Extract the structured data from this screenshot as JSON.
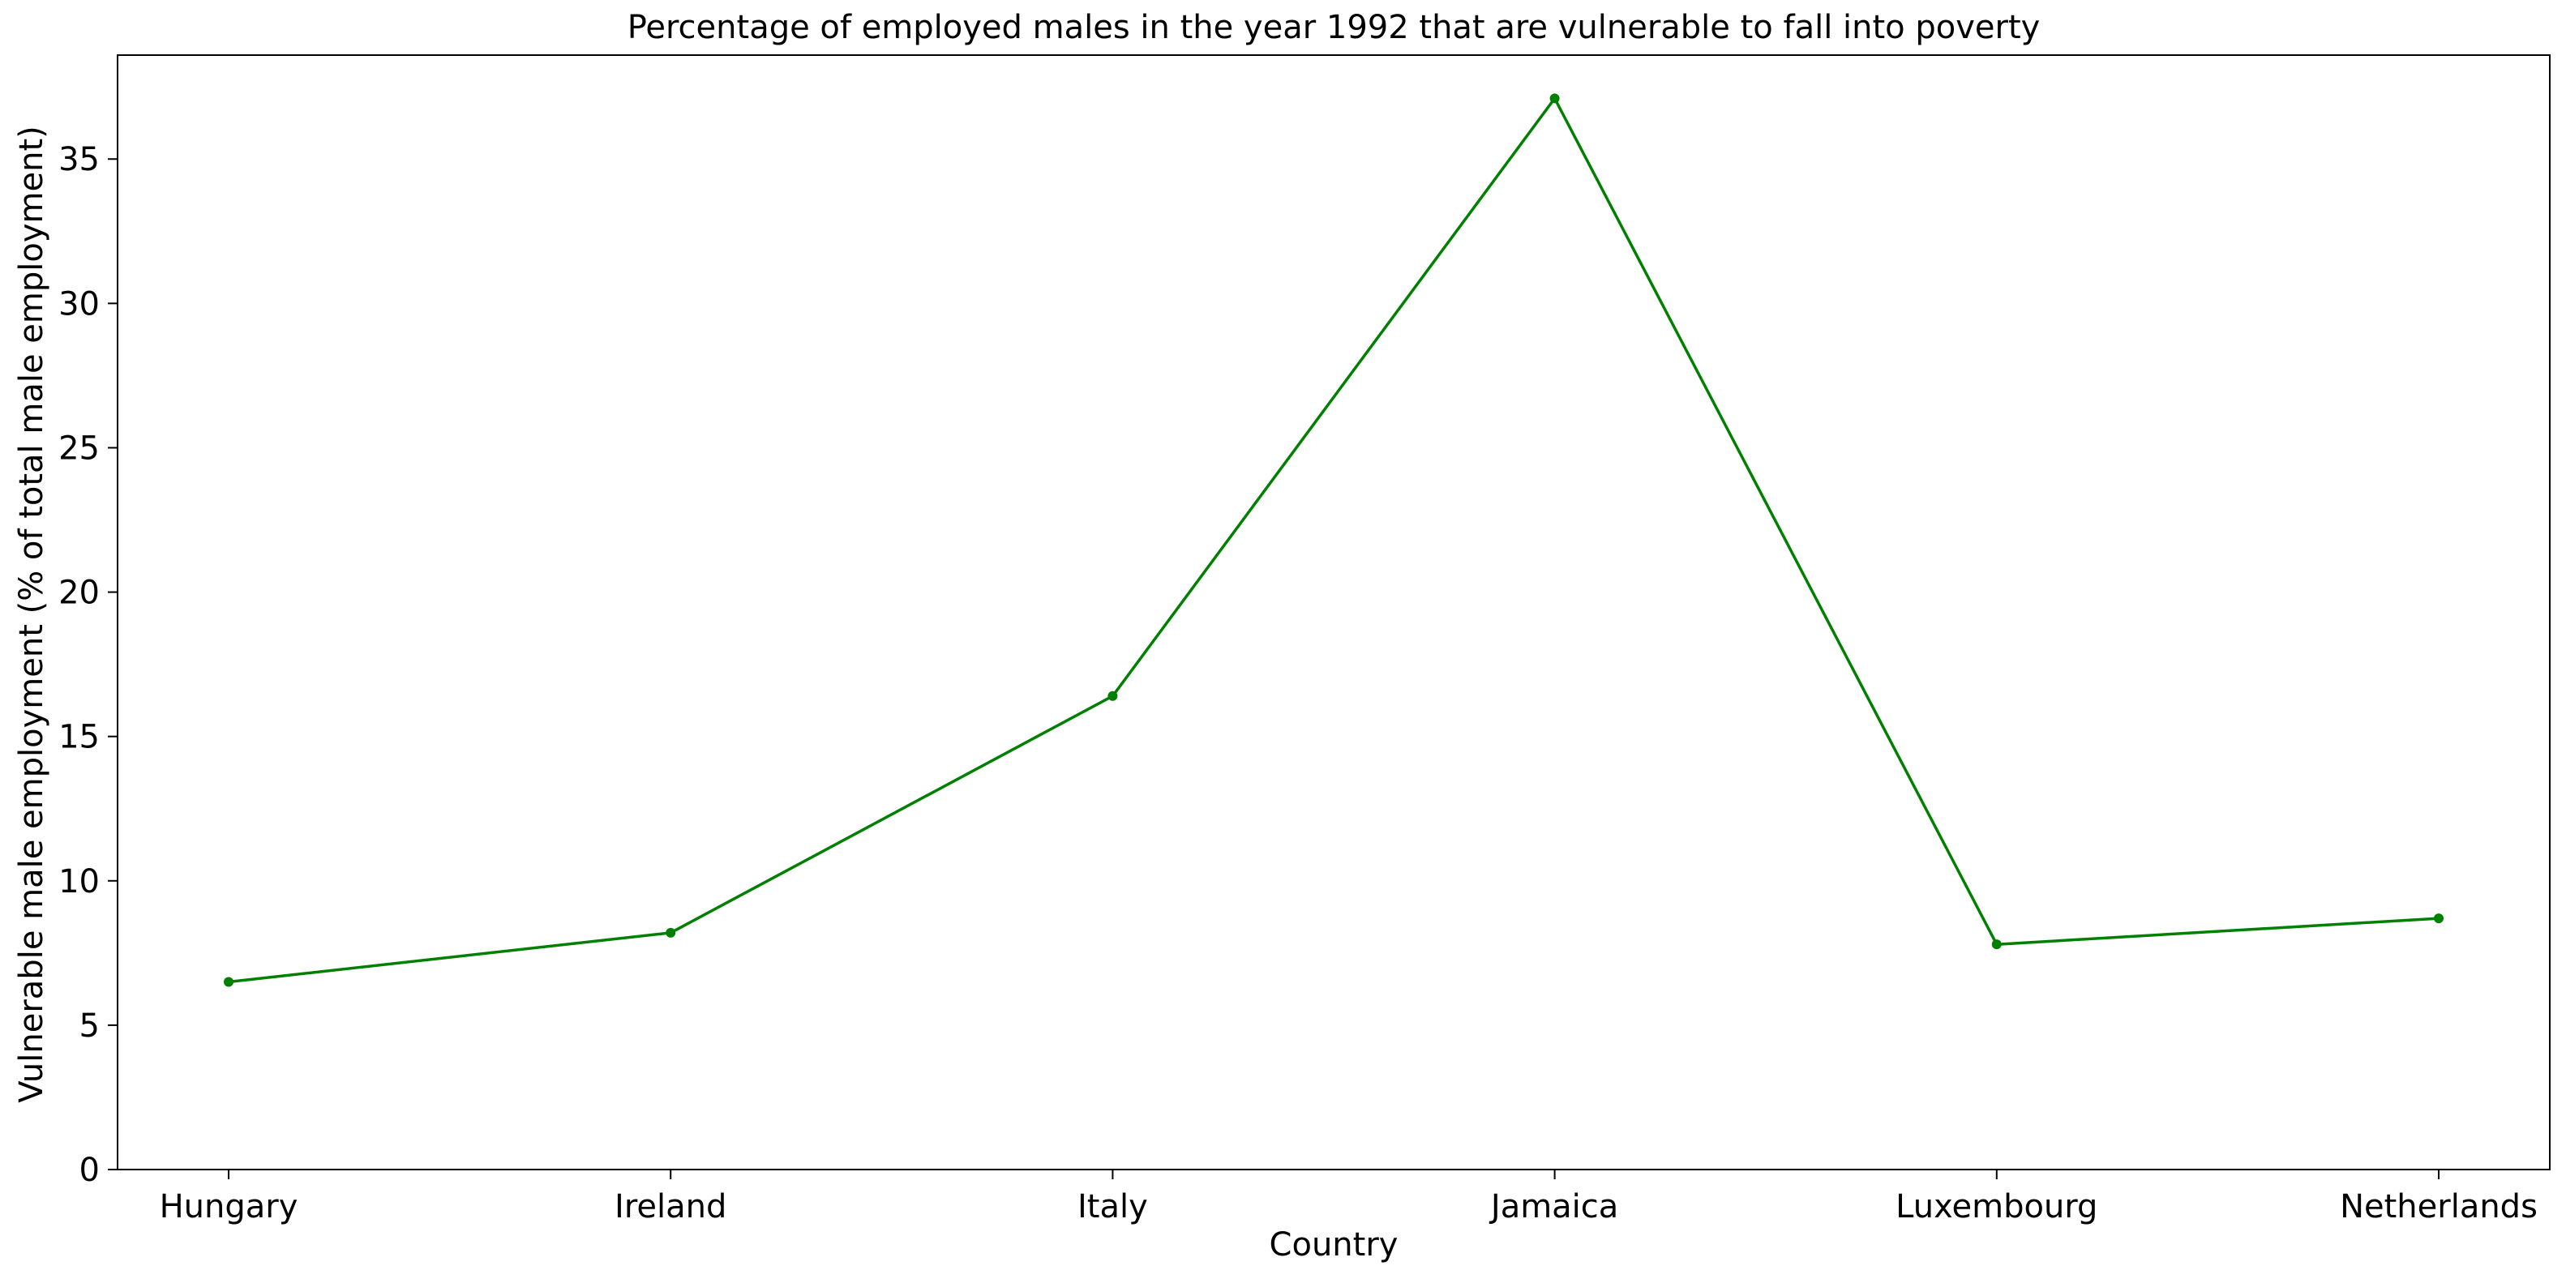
{
  "chart_data": {
    "type": "line",
    "title": "Percentage of employed males in the year 1992 that are vulnerable to fall into poverty",
    "xlabel": "Country",
    "ylabel": "Vulnerable male employment (% of total male employment)",
    "categories": [
      "Hungary",
      "Ireland",
      "Italy",
      "Jamaica",
      "Luxembourg",
      "Netherlands"
    ],
    "series": [
      {
        "values": [
          6.5,
          8.2,
          16.4,
          37.1,
          7.8,
          8.7
        ],
        "color": "#008000",
        "marker": "circle"
      }
    ],
    "ylim": [
      0,
      38.6
    ],
    "yticks": [
      0,
      5,
      10,
      15,
      20,
      25,
      30,
      35
    ],
    "grid": false,
    "legend": "none"
  }
}
